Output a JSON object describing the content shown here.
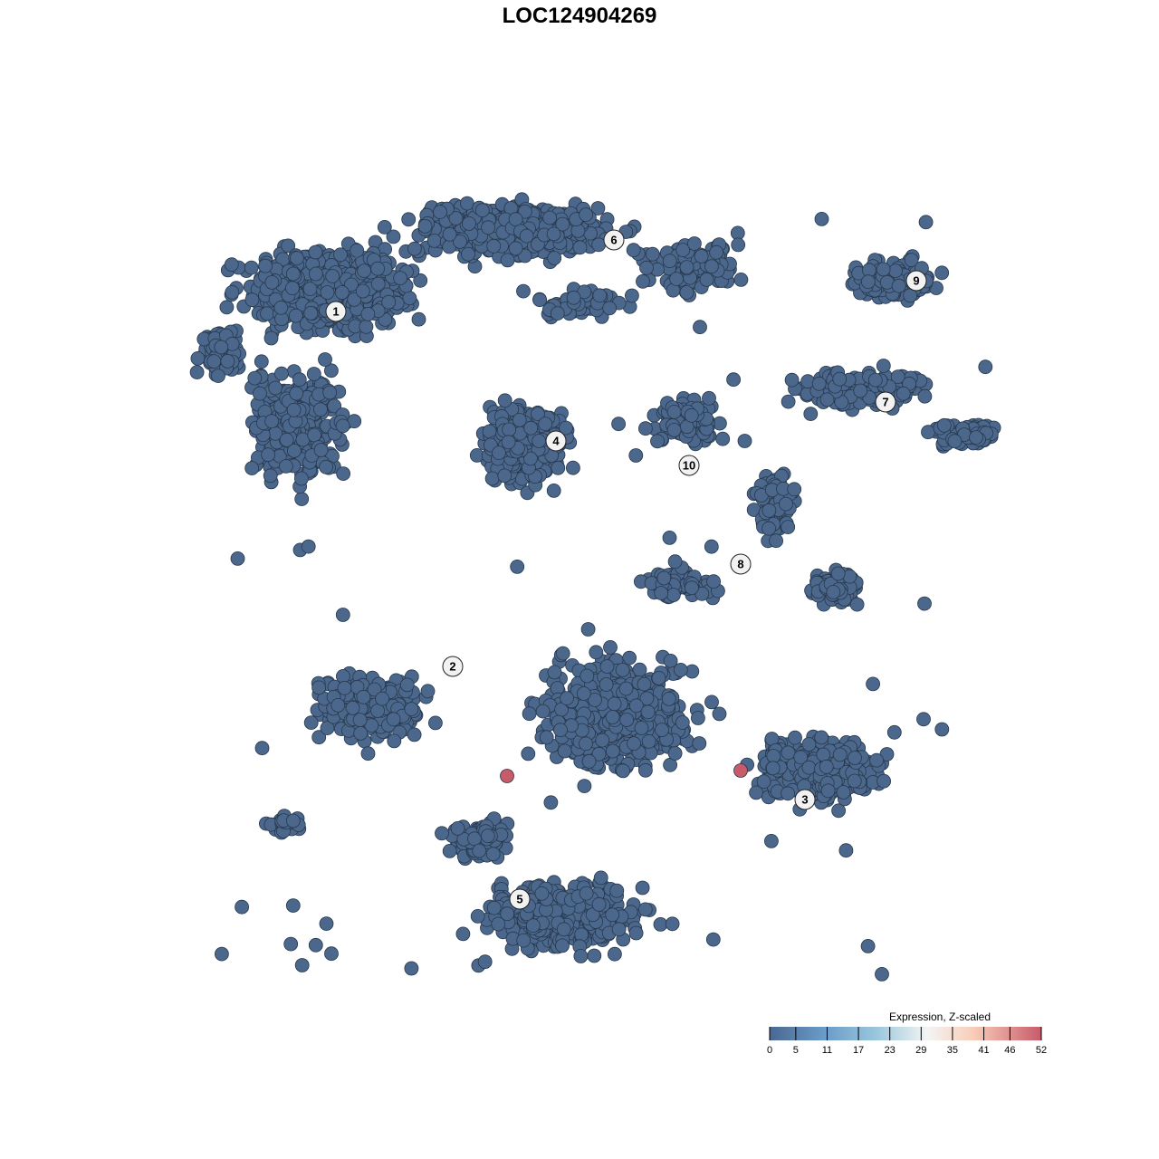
{
  "chart_data": {
    "type": "scatter",
    "title": "LOC124904269",
    "xlabel": "",
    "ylabel": "",
    "grid": false,
    "axes_visible": false,
    "point_color_default": "#4B678C",
    "clusters": [
      {
        "label": "1",
        "x": -26.9,
        "y": 29.6
      },
      {
        "label": "2",
        "x": -14.0,
        "y": -9.6
      },
      {
        "label": "3",
        "x": 24.9,
        "y": -24.3
      },
      {
        "label": "4",
        "x": -2.6,
        "y": 15.3
      },
      {
        "label": "5",
        "x": -6.6,
        "y": -35.3
      },
      {
        "label": "6",
        "x": 3.8,
        "y": 37.5
      },
      {
        "label": "7",
        "x": 33.8,
        "y": 19.6
      },
      {
        "label": "8",
        "x": 17.8,
        "y": 1.7
      },
      {
        "label": "9",
        "x": 37.2,
        "y": 33.0
      },
      {
        "label": "10",
        "x": 12.1,
        "y": 12.6
      }
    ],
    "highlighted_points": [
      {
        "x": -8.0,
        "y": -21.7,
        "expression": 52
      },
      {
        "x": 17.8,
        "y": -21.1,
        "expression": 52
      }
    ],
    "baseline_expression": 0,
    "legend": {
      "title": "Expression, Z-scaled",
      "placement": "bottom-right",
      "range": [
        0,
        52
      ],
      "ticks": [
        "0",
        "5",
        "11",
        "17",
        "23",
        "29",
        "35",
        "41",
        "46",
        "52"
      ],
      "colors": [
        "#4A6892",
        "#6A9BC8",
        "#8FC0DA",
        "#CFE3EE",
        "#F4F4F4",
        "#F9D9C8",
        "#EEA98F",
        "#C75B6A"
      ]
    }
  }
}
